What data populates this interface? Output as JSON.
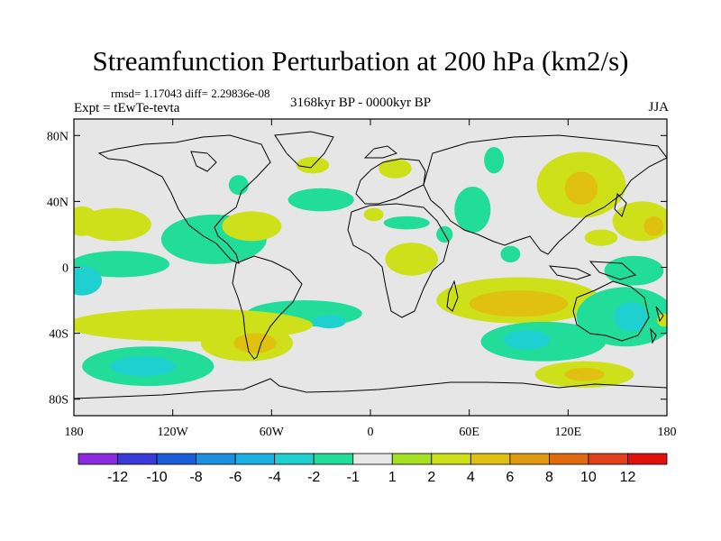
{
  "chart_data": {
    "type": "heatmap",
    "title": "Streamfunction Perturbation at 200 hPa (km2/s)",
    "stats_line": "rmsd= 1.17043  diff= 2.29836e-08",
    "experiment": "Expt = tEwTe-tevta",
    "period": "3168kyr BP - 0000kyr BP",
    "season": "JJA",
    "xlim": [
      -180,
      180
    ],
    "ylim": [
      -90,
      90
    ],
    "x_ticks": [
      {
        "value": -180,
        "label": "180"
      },
      {
        "value": -120,
        "label": "120W"
      },
      {
        "value": -60,
        "label": "60W"
      },
      {
        "value": 0,
        "label": "0"
      },
      {
        "value": 60,
        "label": "60E"
      },
      {
        "value": 120,
        "label": "120E"
      },
      {
        "value": 180,
        "label": "180"
      }
    ],
    "y_ticks": [
      {
        "value": 80,
        "label": "80N"
      },
      {
        "value": 40,
        "label": "40N"
      },
      {
        "value": 0,
        "label": "0"
      },
      {
        "value": -40,
        "label": "40S"
      },
      {
        "value": -80,
        "label": "80S"
      }
    ],
    "levels": [
      {
        "label": "-12"
      },
      {
        "label": "-10"
      },
      {
        "label": "-8"
      },
      {
        "label": "-6"
      },
      {
        "label": "-4"
      },
      {
        "label": "-2"
      },
      {
        "label": "-1"
      },
      {
        "label": "1"
      },
      {
        "label": "2"
      },
      {
        "label": "4"
      },
      {
        "label": "6"
      },
      {
        "label": "8"
      },
      {
        "label": "10"
      },
      {
        "label": "12"
      }
    ],
    "colors": [
      "#8a2be2",
      "#3a3ad8",
      "#1a5fd8",
      "#1e90e0",
      "#1cb0e0",
      "#1ed0d0",
      "#22dd99",
      "#e8e8e8",
      "#a6e022",
      "#cde01a",
      "#e0c010",
      "#e09a10",
      "#e06a10",
      "#e0401a",
      "#e01010"
    ],
    "regions": [
      {
        "lon": -175,
        "lat": 28,
        "rx": 10,
        "ry": 9,
        "value": 3
      },
      {
        "lon": -155,
        "lat": 26,
        "rx": 22,
        "ry": 10,
        "value": 2
      },
      {
        "lon": -152,
        "lat": 2,
        "rx": 30,
        "ry": 8,
        "value": -2
      },
      {
        "lon": -175,
        "lat": -8,
        "rx": 12,
        "ry": 9,
        "value": -3
      },
      {
        "lon": -95,
        "lat": 17,
        "rx": 32,
        "ry": 15,
        "value": -2
      },
      {
        "lon": -72,
        "lat": 25,
        "rx": 18,
        "ry": 9,
        "value": 2
      },
      {
        "lon": -30,
        "lat": 41,
        "rx": 20,
        "ry": 7,
        "value": -2
      },
      {
        "lon": -35,
        "lat": 62,
        "rx": 10,
        "ry": 5,
        "value": 2
      },
      {
        "lon": -80,
        "lat": 50,
        "rx": 6,
        "ry": 6,
        "value": -2
      },
      {
        "lon": 15,
        "lat": 60,
        "rx": 10,
        "ry": 6,
        "value": 2
      },
      {
        "lon": 75,
        "lat": 65,
        "rx": 6,
        "ry": 8,
        "value": -2
      },
      {
        "lon": 62,
        "lat": 35,
        "rx": 11,
        "ry": 14,
        "value": -2
      },
      {
        "lon": 45,
        "lat": 20,
        "rx": 5,
        "ry": 5,
        "value": -2
      },
      {
        "lon": 2,
        "lat": 32,
        "rx": 6,
        "ry": 4,
        "value": 2
      },
      {
        "lon": 22,
        "lat": 27,
        "rx": 14,
        "ry": 4,
        "value": -2
      },
      {
        "lon": 25,
        "lat": 5,
        "rx": 16,
        "ry": 10,
        "value": 2
      },
      {
        "lon": 85,
        "lat": 8,
        "rx": 6,
        "ry": 5,
        "value": -2
      },
      {
        "lon": 128,
        "lat": 50,
        "rx": 27,
        "ry": 20,
        "value": 2
      },
      {
        "lon": 128,
        "lat": 48,
        "rx": 10,
        "ry": 10,
        "value": 4
      },
      {
        "lon": 165,
        "lat": 28,
        "rx": 18,
        "ry": 12,
        "value": 2
      },
      {
        "lon": 172,
        "lat": 25,
        "rx": 6,
        "ry": 6,
        "value": 4
      },
      {
        "lon": 140,
        "lat": 18,
        "rx": 10,
        "ry": 5,
        "value": 2
      },
      {
        "lon": 90,
        "lat": -20,
        "rx": 50,
        "ry": 14,
        "value": 2
      },
      {
        "lon": 90,
        "lat": -22,
        "rx": 30,
        "ry": 8,
        "value": 4
      },
      {
        "lon": 155,
        "lat": -30,
        "rx": 30,
        "ry": 18,
        "value": -2
      },
      {
        "lon": 158,
        "lat": -30,
        "rx": 10,
        "ry": 9,
        "value": -4
      },
      {
        "lon": 178,
        "lat": -32,
        "rx": 4,
        "ry": 4,
        "value": 2
      },
      {
        "lon": 160,
        "lat": -2,
        "rx": 18,
        "ry": 9,
        "value": -2
      },
      {
        "lon": 105,
        "lat": -45,
        "rx": 38,
        "ry": 12,
        "value": -2
      },
      {
        "lon": 95,
        "lat": -44,
        "rx": 14,
        "ry": 6,
        "value": -4
      },
      {
        "lon": 130,
        "lat": -65,
        "rx": 30,
        "ry": 8,
        "value": 2
      },
      {
        "lon": 130,
        "lat": -65,
        "rx": 12,
        "ry": 4,
        "value": 4
      },
      {
        "lon": -40,
        "lat": -28,
        "rx": 35,
        "ry": 8,
        "value": -2
      },
      {
        "lon": -25,
        "lat": -33,
        "rx": 10,
        "ry": 4,
        "value": -4
      },
      {
        "lon": -110,
        "lat": -35,
        "rx": 75,
        "ry": 10,
        "value": 2
      },
      {
        "lon": -75,
        "lat": -46,
        "rx": 28,
        "ry": 11,
        "value": 2
      },
      {
        "lon": -70,
        "lat": -46,
        "rx": 13,
        "ry": 6,
        "value": 4
      },
      {
        "lon": -135,
        "lat": -60,
        "rx": 40,
        "ry": 12,
        "value": -2
      },
      {
        "lon": -138,
        "lat": -60,
        "rx": 20,
        "ry": 6,
        "value": -4
      }
    ],
    "colorbar_label_keys": [
      "-12",
      "-10",
      "-8",
      "-6",
      "-4",
      "-2",
      "-1",
      "1",
      "2",
      "4",
      "6",
      "8",
      "10",
      "12"
    ]
  }
}
